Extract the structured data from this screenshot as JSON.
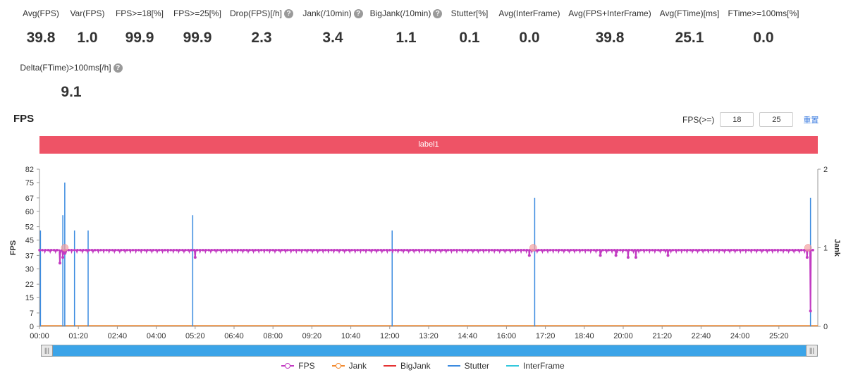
{
  "metrics": [
    {
      "label": "Avg(FPS)",
      "value": "39.8",
      "help": false
    },
    {
      "label": "Var(FPS)",
      "value": "1.0",
      "help": false
    },
    {
      "label": "FPS>=18[%]",
      "value": "99.9",
      "help": false
    },
    {
      "label": "FPS>=25[%]",
      "value": "99.9",
      "help": false
    },
    {
      "label": "Drop(FPS)[/h]",
      "value": "2.3",
      "help": true
    },
    {
      "label": "Jank(/10min)",
      "value": "3.4",
      "help": true
    },
    {
      "label": "BigJank(/10min)",
      "value": "1.1",
      "help": true
    },
    {
      "label": "Stutter[%]",
      "value": "0.1",
      "help": false
    },
    {
      "label": "Avg(InterFrame)",
      "value": "0.0",
      "help": false
    },
    {
      "label": "Avg(FPS+InterFrame)",
      "value": "39.8",
      "help": false
    },
    {
      "label": "Avg(FTime)[ms]",
      "value": "25.1",
      "help": false
    },
    {
      "label": "FTime>=100ms[%]",
      "value": "0.0",
      "help": false
    },
    {
      "label": "Delta(FTime)>100ms[/h]",
      "value": "9.1",
      "help": true
    }
  ],
  "section_title": "FPS",
  "threshold": {
    "label": "FPS(>=)",
    "value1": "18",
    "value2": "25",
    "reset": "重置"
  },
  "label_band": "label1",
  "help_glyph": "?",
  "slider_glyph": "|||",
  "chart_data": {
    "type": "line",
    "title": "",
    "xlabel": "",
    "ylabel": "FPS",
    "ylabel_right": "Jank",
    "ylim": [
      0,
      82
    ],
    "y_ticks": [
      "0",
      "7",
      "15",
      "22",
      "30",
      "37",
      "45",
      "52",
      "60",
      "67",
      "75",
      "82"
    ],
    "y_right_ticks": [
      "0",
      "1",
      "2"
    ],
    "y_right_lim": [
      0,
      2
    ],
    "x_ticks": [
      "00:00",
      "01:20",
      "02:40",
      "04:00",
      "05:20",
      "06:40",
      "08:00",
      "09:20",
      "10:40",
      "12:00",
      "13:20",
      "14:40",
      "16:00",
      "17:20",
      "18:40",
      "20:00",
      "21:20",
      "22:40",
      "24:00",
      "25:20"
    ],
    "x_range_seconds": [
      0,
      1600
    ],
    "fps_baseline": 39.8,
    "fps_dips": [
      {
        "t": 42,
        "v": 33
      },
      {
        "t": 48,
        "v": 36
      },
      {
        "t": 52,
        "v": 38
      },
      {
        "t": 320,
        "v": 36
      },
      {
        "t": 1007,
        "v": 37
      },
      {
        "t": 1153,
        "v": 37
      },
      {
        "t": 1185,
        "v": 37
      },
      {
        "t": 1210,
        "v": 36
      },
      {
        "t": 1226,
        "v": 36
      },
      {
        "t": 1292,
        "v": 37
      },
      {
        "t": 1578,
        "v": 36
      },
      {
        "t": 1585,
        "v": 8
      }
    ],
    "stutter_spikes": [
      {
        "t": 2,
        "v": 50
      },
      {
        "t": 48,
        "v": 58
      },
      {
        "t": 52,
        "v": 75
      },
      {
        "t": 72,
        "v": 50
      },
      {
        "t": 100,
        "v": 50
      },
      {
        "t": 315,
        "v": 58
      },
      {
        "t": 725,
        "v": 50
      },
      {
        "t": 1018,
        "v": 67
      },
      {
        "t": 1585,
        "v": 67
      }
    ],
    "jank_events": [
      {
        "t": 52,
        "v": 1
      },
      {
        "t": 1015,
        "v": 1
      },
      {
        "t": 1580,
        "v": 1
      }
    ],
    "series": [
      {
        "name": "FPS",
        "color": "#c23bc2"
      },
      {
        "name": "Jank",
        "color": "#f28a30"
      },
      {
        "name": "BigJank",
        "color": "#e53333"
      },
      {
        "name": "Stutter",
        "color": "#3b8be0"
      },
      {
        "name": "InterFrame",
        "color": "#33c8dd"
      }
    ]
  }
}
